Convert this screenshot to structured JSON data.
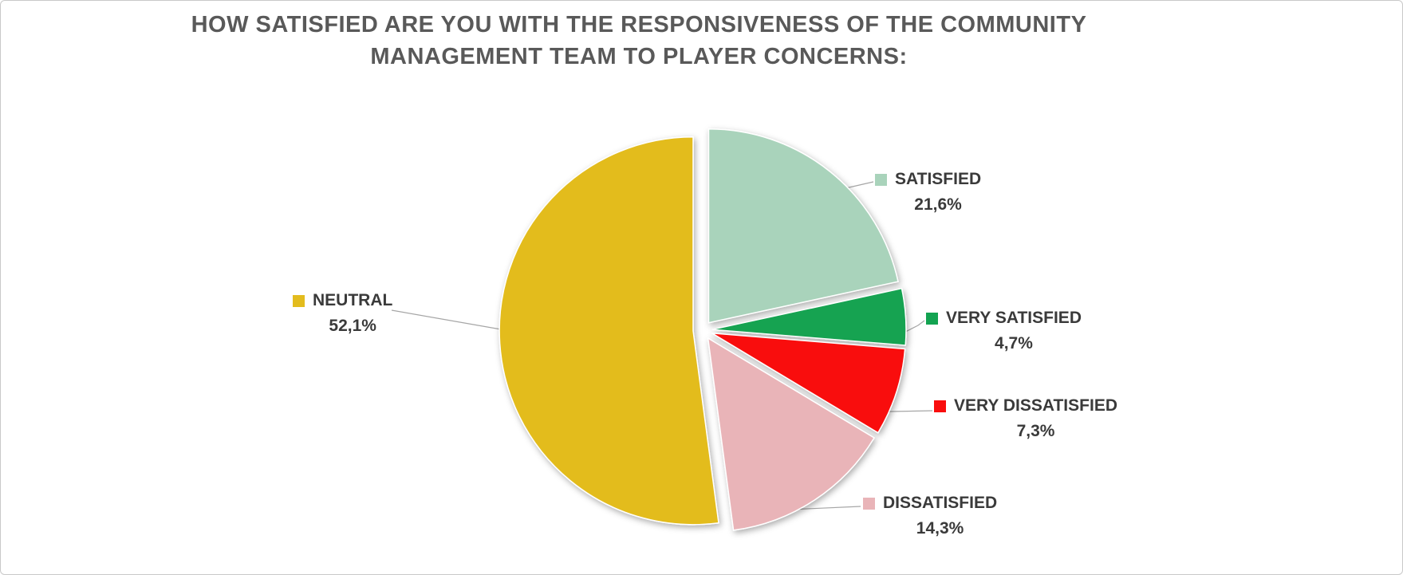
{
  "title": {
    "line1": "HOW SATISFIED ARE YOU WITH THE RESPONSIVENESS OF THE COMMUNITY",
    "line2": "MANAGEMENT TEAM TO PLAYER CONCERNS:"
  },
  "chart_data": {
    "type": "pie",
    "title": "HOW SATISFIED ARE YOU WITH THE RESPONSIVENESS OF THE COMMUNITY MANAGEMENT TEAM TO PLAYER CONCERNS:",
    "unit": "percent",
    "decimal_separator": ",",
    "start_angle_deg": 0,
    "direction": "clockwise",
    "exploded": true,
    "legend_position": "outside-callout-labels",
    "slices": [
      {
        "label": "SATISFIED",
        "value": 21.6,
        "display": "21,6%",
        "color": "#A9D3BB"
      },
      {
        "label": "VERY SATISFIED",
        "value": 4.7,
        "display": "4,7%",
        "color": "#13A351"
      },
      {
        "label": "VERY DISSATISFIED",
        "value": 7.3,
        "display": "7,3%",
        "color": "#F90D0D"
      },
      {
        "label": "DISSATISFIED",
        "value": 14.3,
        "display": "14,3%",
        "color": "#E9B4B8"
      },
      {
        "label": "NEUTRAL",
        "value": 52.1,
        "display": "52,1%",
        "color": "#E3BC1E"
      }
    ],
    "colors": {
      "title": "#595959",
      "label_text": "#3A3A3A",
      "leader_line": "#A6A6A6",
      "background": "#FFFFFF"
    }
  }
}
